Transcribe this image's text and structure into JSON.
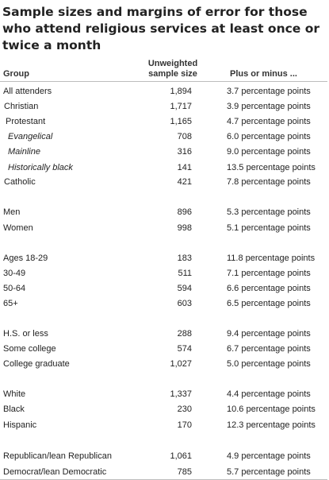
{
  "title": "Sample sizes and margins of error for those who attend religious services at least once or twice a month",
  "headers": {
    "group": "Group",
    "sample_size": "Unweighted sample size",
    "moe": "Plus or minus ..."
  },
  "rows": [
    {
      "label": "All attenders",
      "size": "1,894",
      "moe": "3.7 percentage points",
      "indent": 0
    },
    {
      "label": "Christian",
      "size": "1,717",
      "moe": "3.9 percentage points",
      "indent": 1
    },
    {
      "label": "Protestant",
      "size": "1,165",
      "moe": "4.7 percentage points",
      "indent": 2
    },
    {
      "label": "Evangelical",
      "size": "708",
      "moe": "6.0 percentage points",
      "indent": 3
    },
    {
      "label": "Mainline",
      "size": "316",
      "moe": "9.0 percentage points",
      "indent": 3
    },
    {
      "label": "Historically black",
      "size": "141",
      "moe": "13.5 percentage points",
      "indent": 3
    },
    {
      "label": "Catholic",
      "size": "421",
      "moe": "7.8 percentage points",
      "indent": 1
    },
    {
      "label": "Men",
      "size": "896",
      "moe": "5.3 percentage points",
      "indent": 0
    },
    {
      "label": "Women",
      "size": "998",
      "moe": "5.1 percentage points",
      "indent": 0
    },
    {
      "label": "Ages 18-29",
      "size": "183",
      "moe": "11.8 percentage points",
      "indent": 0
    },
    {
      "label": "30-49",
      "size": "511",
      "moe": "7.1 percentage points",
      "indent": 0
    },
    {
      "label": "50-64",
      "size": "594",
      "moe": "6.6 percentage points",
      "indent": 0
    },
    {
      "label": "65+",
      "size": "603",
      "moe": "6.5 percentage points",
      "indent": 0
    },
    {
      "label": "H.S. or less",
      "size": "288",
      "moe": "9.4 percentage points",
      "indent": 0
    },
    {
      "label": "Some college",
      "size": "574",
      "moe": "6.7 percentage points",
      "indent": 0
    },
    {
      "label": "College graduate",
      "size": "1,027",
      "moe": "5.0 percentage points",
      "indent": 0
    },
    {
      "label": "White",
      "size": "1,337",
      "moe": "4.4 percentage points",
      "indent": 0
    },
    {
      "label": "Black",
      "size": "230",
      "moe": "10.6 percentage points",
      "indent": 0
    },
    {
      "label": "Hispanic",
      "size": "170",
      "moe": "12.3 percentage points",
      "indent": 0
    },
    {
      "label": "Republican/lean Republican",
      "size": "1,061",
      "moe": "4.9 percentage points",
      "indent": 0
    },
    {
      "label": "Democrat/lean Democratic",
      "size": "785",
      "moe": "5.7 percentage points",
      "indent": 0
    }
  ]
}
